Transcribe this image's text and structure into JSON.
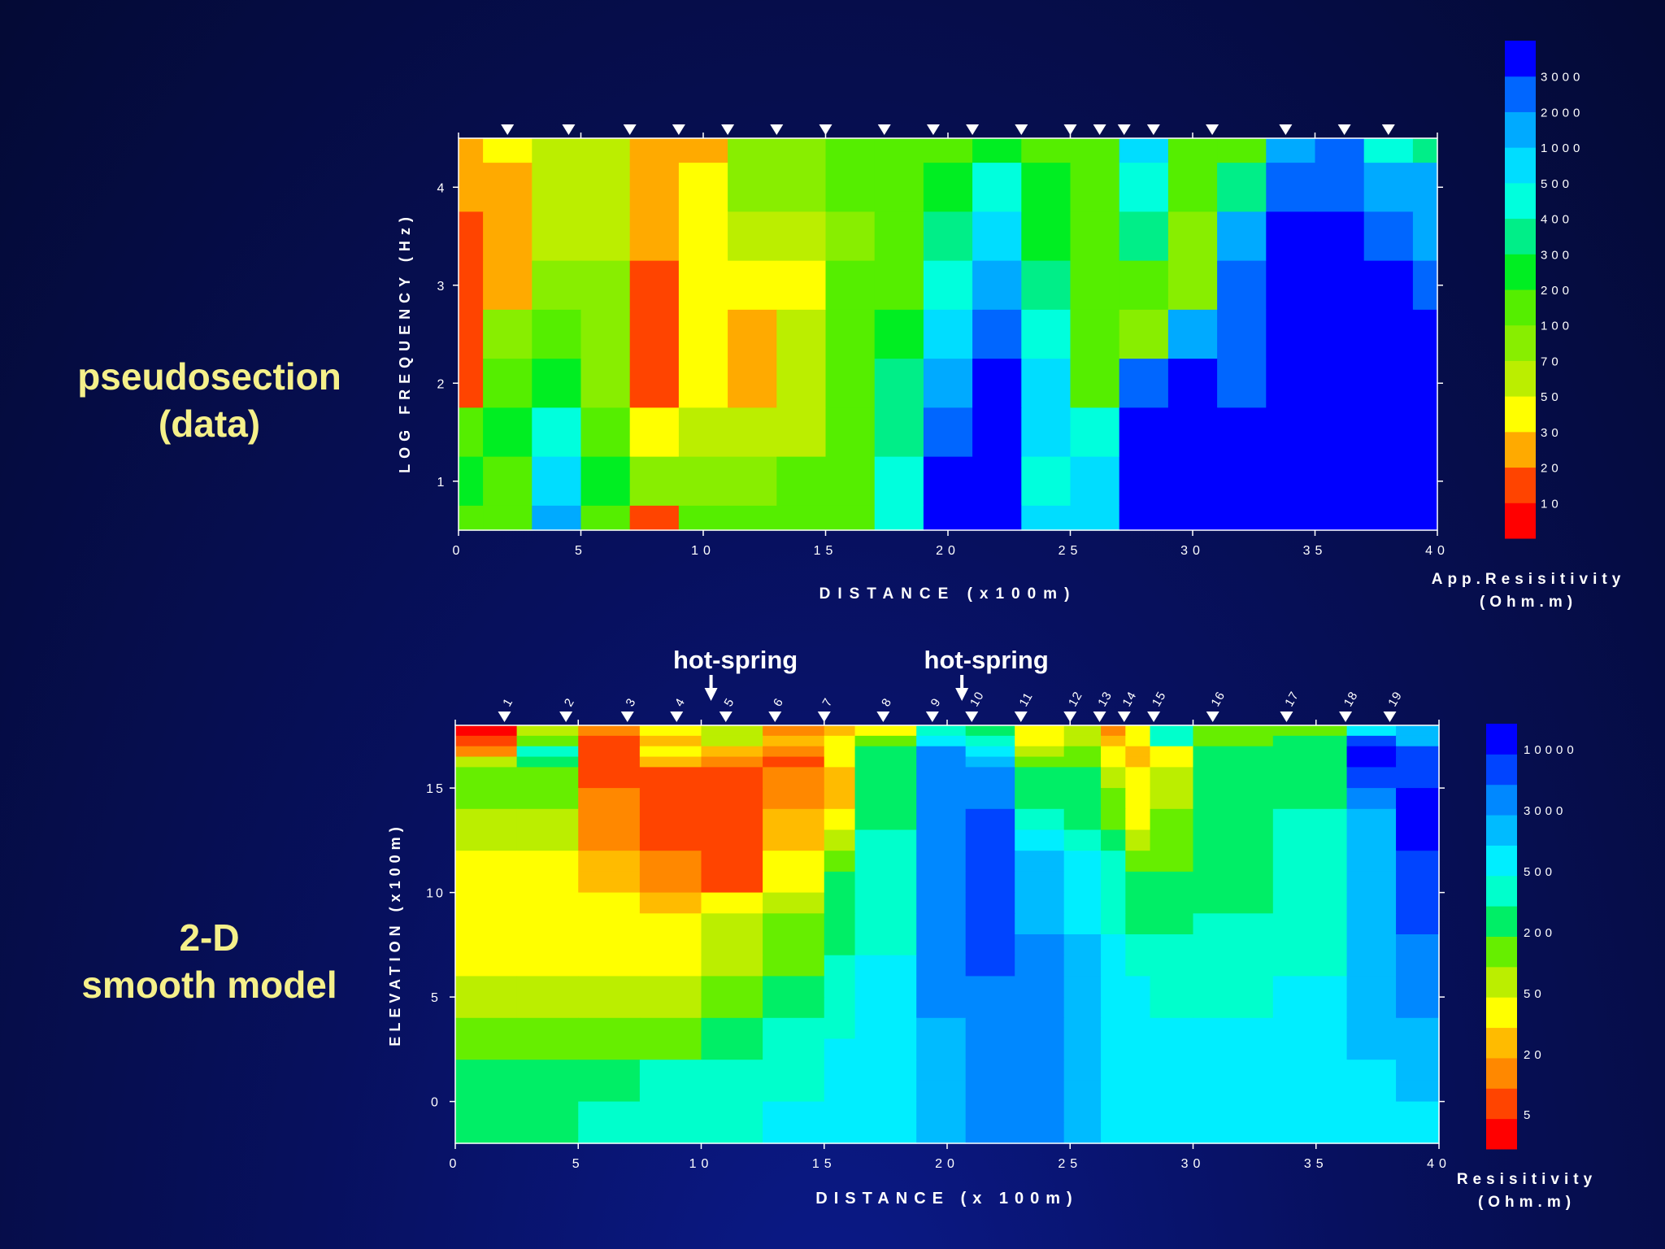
{
  "labels": {
    "top_line1": "pseudosection",
    "top_line2": "(data)",
    "bottom_line1": "2-D",
    "bottom_line2": "smooth model",
    "hotspring_1": "hot-spring",
    "hotspring_2": "hot-spring"
  },
  "chart_data": [
    {
      "type": "heatmap",
      "name": "pseudosection",
      "xlabel": "DISTANCE (x100m)",
      "ylabel": "LOG FREQUENCY (Hz)",
      "xlim": [
        0,
        40
      ],
      "ylim": [
        0.5,
        4.5
      ],
      "xticks": [
        "0",
        "5",
        "10",
        "15",
        "20",
        "25",
        "30",
        "35",
        "40"
      ],
      "yticks": [
        "1",
        "2",
        "3",
        "4"
      ],
      "stations_x": [
        2.0,
        4.5,
        7.0,
        9.0,
        11.0,
        13.0,
        15.0,
        17.4,
        19.4,
        21.0,
        23.0,
        25.0,
        26.2,
        27.2,
        28.4,
        30.8,
        33.8,
        36.2,
        38.0
      ],
      "colorbar": {
        "title_line1": "App.Resisitivity",
        "title_line2": "(Ohm.m)",
        "labels": [
          "10",
          "20",
          "30",
          "50",
          "70",
          "100",
          "200",
          "300",
          "400",
          "500",
          "1000",
          "2000",
          "3000"
        ],
        "colors": [
          "#ff0000",
          "#ff4400",
          "#ffaa00",
          "#ffff00",
          "#bbee00",
          "#88ee00",
          "#55ee00",
          "#00ee22",
          "#00ee88",
          "#00ffdd",
          "#00ddff",
          "#00aaff",
          "#0066ff",
          "#0000ff"
        ]
      },
      "columns_x": [
        0,
        2,
        4,
        6,
        8,
        10,
        12,
        14,
        16,
        18,
        20,
        22,
        24,
        26,
        28,
        30,
        32,
        34,
        36,
        38,
        40
      ],
      "rows_y": [
        4.5,
        4,
        3.5,
        3,
        2.5,
        2,
        1.5,
        1,
        0.5
      ],
      "values_class": [
        [
          2,
          3,
          4,
          4,
          2,
          2,
          5,
          5,
          6,
          6,
          6,
          7,
          6,
          6,
          10,
          6,
          6,
          11,
          12,
          9,
          8
        ],
        [
          2,
          2,
          4,
          4,
          2,
          3,
          5,
          5,
          6,
          6,
          7,
          9,
          7,
          6,
          9,
          6,
          8,
          12,
          12,
          11,
          11
        ],
        [
          1,
          2,
          4,
          4,
          2,
          3,
          4,
          4,
          5,
          6,
          8,
          10,
          7,
          6,
          8,
          5,
          11,
          13,
          13,
          12,
          11
        ],
        [
          1,
          2,
          5,
          5,
          1,
          3,
          3,
          3,
          6,
          6,
          9,
          11,
          8,
          6,
          6,
          5,
          12,
          13,
          13,
          13,
          12
        ],
        [
          1,
          5,
          6,
          5,
          1,
          3,
          2,
          4,
          6,
          7,
          10,
          12,
          9,
          6,
          5,
          11,
          12,
          13,
          13,
          13,
          13
        ],
        [
          1,
          6,
          7,
          5,
          1,
          3,
          2,
          4,
          6,
          8,
          11,
          13,
          10,
          6,
          12,
          13,
          12,
          13,
          13,
          13,
          13
        ],
        [
          6,
          7,
          9,
          6,
          3,
          4,
          4,
          4,
          6,
          8,
          12,
          13,
          10,
          9,
          13,
          13,
          13,
          13,
          13,
          13,
          13
        ],
        [
          7,
          6,
          10,
          7,
          5,
          5,
          5,
          6,
          6,
          9,
          13,
          13,
          9,
          10,
          13,
          13,
          13,
          13,
          13,
          13,
          13
        ],
        [
          6,
          6,
          11,
          6,
          1,
          6,
          6,
          6,
          6,
          9,
          13,
          13,
          10,
          10,
          13,
          13,
          13,
          13,
          13,
          13,
          13
        ]
      ]
    },
    {
      "type": "heatmap",
      "name": "smooth model",
      "xlabel": "DISTANCE (x 100m)",
      "ylabel": "ELEVATION (x100m)",
      "xlim": [
        0,
        40
      ],
      "ylim": [
        -2,
        18
      ],
      "xticks": [
        "0",
        "5",
        "10",
        "15",
        "20",
        "25",
        "30",
        "35",
        "40"
      ],
      "yticks": [
        "0",
        "5",
        "10",
        "15"
      ],
      "stations": [
        {
          "n": "1",
          "x": 2.0
        },
        {
          "n": "2",
          "x": 4.5
        },
        {
          "n": "3",
          "x": 7.0
        },
        {
          "n": "4",
          "x": 9.0
        },
        {
          "n": "5",
          "x": 11.0
        },
        {
          "n": "6",
          "x": 13.0
        },
        {
          "n": "7",
          "x": 15.0
        },
        {
          "n": "8",
          "x": 17.4
        },
        {
          "n": "9",
          "x": 19.4
        },
        {
          "n": "10",
          "x": 21.0
        },
        {
          "n": "11",
          "x": 23.0
        },
        {
          "n": "12",
          "x": 25.0
        },
        {
          "n": "13",
          "x": 26.2
        },
        {
          "n": "14",
          "x": 27.2
        },
        {
          "n": "15",
          "x": 28.4
        },
        {
          "n": "16",
          "x": 30.8
        },
        {
          "n": "17",
          "x": 33.8
        },
        {
          "n": "18",
          "x": 36.2
        },
        {
          "n": "19",
          "x": 38.0
        }
      ],
      "hotsprings_x": [
        10.4,
        20.6
      ],
      "colorbar": {
        "title_line1": "Resisitivity",
        "title_line2": "(Ohm.m)",
        "labels": [
          "5",
          "20",
          "50",
          "200",
          "500",
          "3000",
          "10000"
        ],
        "colors": [
          "#ff0000",
          "#ff4400",
          "#ff8800",
          "#ffbb00",
          "#ffff00",
          "#bbee00",
          "#66ee00",
          "#00ee66",
          "#00ffcc",
          "#00eeff",
          "#00bbff",
          "#0088ff",
          "#0044ff",
          "#0000ff"
        ]
      },
      "cols_x": [
        0,
        2.5,
        5,
        7.5,
        10,
        12.5,
        15,
        16.25,
        18.75,
        20.75,
        22.75,
        24.75,
        26.25,
        27.25,
        28.25,
        30,
        33.25,
        36.25,
        38.25,
        40
      ],
      "rows_y": [
        18,
        17.5,
        17,
        16.5,
        16,
        15,
        14,
        13,
        12,
        11,
        10,
        9,
        8,
        7,
        6,
        5,
        4,
        3,
        2,
        1,
        0,
        -1,
        -2
      ],
      "values_class": [
        [
          0,
          5,
          2,
          4,
          5,
          2,
          3,
          4,
          8,
          7,
          4,
          5,
          2,
          4,
          8,
          6,
          6,
          9,
          10
        ],
        [
          1,
          6,
          1,
          3,
          5,
          3,
          4,
          6,
          9,
          8,
          4,
          5,
          3,
          4,
          8,
          6,
          7,
          12,
          10
        ],
        [
          2,
          8,
          1,
          4,
          3,
          2,
          4,
          7,
          11,
          9,
          5,
          6,
          4,
          3,
          4,
          7,
          7,
          13,
          12
        ],
        [
          5,
          7,
          1,
          3,
          2,
          1,
          4,
          7,
          11,
          10,
          6,
          6,
          4,
          3,
          4,
          7,
          7,
          13,
          12
        ],
        [
          6,
          6,
          1,
          1,
          1,
          2,
          3,
          7,
          11,
          11,
          7,
          7,
          5,
          4,
          5,
          7,
          7,
          12,
          12
        ],
        [
          6,
          6,
          2,
          1,
          1,
          2,
          3,
          7,
          11,
          11,
          7,
          7,
          6,
          4,
          5,
          7,
          7,
          11,
          13
        ],
        [
          5,
          5,
          2,
          1,
          1,
          3,
          4,
          7,
          11,
          12,
          8,
          7,
          6,
          4,
          6,
          7,
          8,
          10,
          13
        ],
        [
          5,
          5,
          2,
          1,
          1,
          3,
          5,
          8,
          11,
          12,
          9,
          8,
          7,
          5,
          6,
          7,
          8,
          10,
          13
        ],
        [
          4,
          4,
          3,
          2,
          1,
          4,
          6,
          8,
          11,
          12,
          10,
          9,
          8,
          6,
          6,
          7,
          8,
          10,
          12
        ],
        [
          4,
          4,
          3,
          2,
          1,
          4,
          7,
          8,
          11,
          12,
          10,
          9,
          8,
          7,
          7,
          7,
          8,
          10,
          12
        ],
        [
          4,
          4,
          4,
          3,
          4,
          5,
          7,
          8,
          11,
          12,
          10,
          9,
          8,
          7,
          7,
          7,
          8,
          10,
          12
        ],
        [
          4,
          4,
          4,
          4,
          5,
          6,
          7,
          8,
          11,
          12,
          10,
          9,
          8,
          7,
          7,
          8,
          8,
          10,
          12
        ],
        [
          4,
          4,
          4,
          4,
          5,
          6,
          7,
          8,
          11,
          12,
          11,
          10,
          9,
          8,
          8,
          8,
          8,
          10,
          11
        ],
        [
          4,
          4,
          4,
          4,
          5,
          6,
          8,
          9,
          11,
          12,
          11,
          10,
          9,
          8,
          8,
          8,
          8,
          10,
          11
        ],
        [
          5,
          5,
          5,
          5,
          6,
          7,
          8,
          9,
          11,
          11,
          11,
          10,
          9,
          9,
          8,
          8,
          9,
          10,
          11
        ],
        [
          5,
          5,
          5,
          5,
          6,
          7,
          8,
          9,
          11,
          11,
          11,
          10,
          9,
          9,
          8,
          8,
          9,
          10,
          11
        ],
        [
          6,
          6,
          6,
          6,
          7,
          8,
          8,
          9,
          10,
          11,
          11,
          10,
          9,
          9,
          9,
          9,
          9,
          10,
          10
        ],
        [
          6,
          6,
          6,
          6,
          7,
          8,
          9,
          9,
          10,
          11,
          11,
          10,
          9,
          9,
          9,
          9,
          9,
          10,
          10
        ],
        [
          7,
          7,
          7,
          8,
          8,
          8,
          9,
          9,
          10,
          11,
          11,
          10,
          9,
          9,
          9,
          9,
          9,
          9,
          10
        ],
        [
          7,
          7,
          7,
          8,
          8,
          8,
          9,
          9,
          10,
          11,
          11,
          10,
          9,
          9,
          9,
          9,
          9,
          9,
          10
        ],
        [
          7,
          7,
          8,
          8,
          8,
          9,
          9,
          9,
          10,
          11,
          11,
          10,
          9,
          9,
          9,
          9,
          9,
          9,
          9
        ],
        [
          7,
          7,
          8,
          8,
          8,
          9,
          9,
          9,
          10,
          11,
          11,
          10,
          9,
          9,
          9,
          9,
          9,
          9,
          9
        ]
      ]
    }
  ]
}
